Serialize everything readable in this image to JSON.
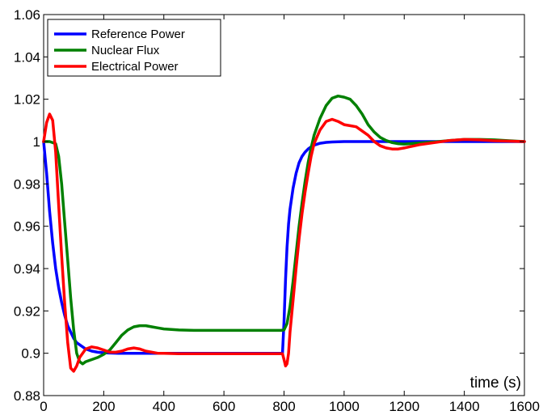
{
  "chart_data": {
    "type": "line",
    "title": "",
    "xlabel": "time (s)",
    "ylabel": "",
    "xlim": [
      0,
      1600
    ],
    "ylim": [
      0.88,
      1.06
    ],
    "xticks": [
      0,
      200,
      400,
      600,
      800,
      1000,
      1200,
      1400,
      1600
    ],
    "yticks": [
      0.88,
      0.9,
      0.92,
      0.94,
      0.96,
      0.98,
      1,
      1.02,
      1.04,
      1.06
    ],
    "xtick_labels": [
      "0",
      "200",
      "400",
      "600",
      "800",
      "1000",
      "1200",
      "1400",
      "1600"
    ],
    "ytick_labels": [
      "0.88",
      "0.9",
      "0.92",
      "0.94",
      "0.96",
      "0.98",
      "1",
      "1.02",
      "1.04",
      "1.06"
    ],
    "grid": false,
    "legend_position": "top-left",
    "series": [
      {
        "name": "Reference Power",
        "color": "#0000ff",
        "x": [
          0,
          10,
          20,
          30,
          40,
          50,
          60,
          70,
          80,
          90,
          100,
          110,
          120,
          140,
          160,
          180,
          200,
          250,
          300,
          400,
          500,
          600,
          700,
          795,
          800,
          805,
          810,
          815,
          820,
          830,
          840,
          850,
          860,
          870,
          880,
          890,
          900,
          920,
          940,
          960,
          980,
          1000,
          1100,
          1200,
          1400,
          1600
        ],
        "y": [
          1.0,
          0.985,
          0.967,
          0.952,
          0.94,
          0.931,
          0.924,
          0.918,
          0.913,
          0.91,
          0.907,
          0.905,
          0.904,
          0.902,
          0.901,
          0.9005,
          0.9002,
          0.9,
          0.9,
          0.9,
          0.9,
          0.9,
          0.9,
          0.9,
          0.915,
          0.935,
          0.95,
          0.961,
          0.968,
          0.978,
          0.985,
          0.99,
          0.993,
          0.995,
          0.9965,
          0.9975,
          0.9983,
          0.9992,
          0.9996,
          0.9998,
          0.9999,
          1.0,
          1.0,
          1.0,
          1.0,
          1.0
        ]
      },
      {
        "name": "Nuclear Flux",
        "color": "#008000",
        "x": [
          0,
          20,
          40,
          50,
          60,
          70,
          80,
          90,
          100,
          110,
          120,
          130,
          140,
          160,
          180,
          200,
          220,
          240,
          260,
          280,
          300,
          320,
          340,
          360,
          380,
          400,
          450,
          500,
          600,
          700,
          790,
          800,
          810,
          820,
          830,
          840,
          850,
          860,
          870,
          880,
          890,
          900,
          920,
          940,
          960,
          980,
          1000,
          1020,
          1040,
          1060,
          1080,
          1100,
          1120,
          1140,
          1160,
          1180,
          1200,
          1250,
          1300,
          1350,
          1400,
          1450,
          1500,
          1550,
          1600
        ],
        "y": [
          1.0,
          1.0,
          0.999,
          0.993,
          0.98,
          0.962,
          0.944,
          0.926,
          0.911,
          0.9,
          0.896,
          0.895,
          0.896,
          0.897,
          0.898,
          0.8995,
          0.9015,
          0.905,
          0.9085,
          0.911,
          0.9125,
          0.913,
          0.913,
          0.9125,
          0.912,
          0.9115,
          0.911,
          0.9108,
          0.9108,
          0.9108,
          0.9108,
          0.911,
          0.914,
          0.922,
          0.934,
          0.947,
          0.96,
          0.971,
          0.981,
          0.99,
          0.997,
          1.003,
          1.011,
          1.017,
          1.0205,
          1.0215,
          1.021,
          1.02,
          1.017,
          1.013,
          1.008,
          1.0045,
          1.002,
          1.0005,
          0.9995,
          0.999,
          0.9988,
          0.9993,
          0.9998,
          1.0005,
          1.001,
          1.001,
          1.0008,
          1.0004,
          1.0
        ]
      },
      {
        "name": "Electrical Power",
        "color": "#ff0000",
        "x": [
          0,
          10,
          20,
          30,
          40,
          50,
          60,
          70,
          80,
          90,
          100,
          110,
          120,
          140,
          160,
          180,
          200,
          220,
          240,
          260,
          280,
          300,
          320,
          340,
          360,
          380,
          400,
          450,
          500,
          600,
          700,
          795,
          800,
          805,
          810,
          815,
          820,
          830,
          840,
          850,
          860,
          870,
          880,
          890,
          900,
          920,
          940,
          960,
          980,
          1000,
          1020,
          1040,
          1060,
          1080,
          1100,
          1120,
          1140,
          1160,
          1180,
          1200,
          1250,
          1300,
          1350,
          1400,
          1450,
          1500,
          1550,
          1600
        ],
        "y": [
          1.0,
          1.009,
          1.013,
          1.01,
          0.995,
          0.97,
          0.946,
          0.924,
          0.905,
          0.893,
          0.8915,
          0.894,
          0.898,
          0.902,
          0.903,
          0.9025,
          0.9015,
          0.9005,
          0.9005,
          0.901,
          0.902,
          0.9025,
          0.902,
          0.901,
          0.9005,
          0.9,
          0.9,
          0.8998,
          0.8998,
          0.8998,
          0.8998,
          0.8998,
          0.897,
          0.894,
          0.895,
          0.9,
          0.91,
          0.925,
          0.94,
          0.954,
          0.966,
          0.976,
          0.985,
          0.993,
          0.999,
          1.0055,
          1.0095,
          1.0105,
          1.0095,
          1.008,
          1.0075,
          1.007,
          1.005,
          1.003,
          1.0,
          0.998,
          0.997,
          0.9965,
          0.9965,
          0.997,
          0.9985,
          0.9995,
          1.0005,
          1.001,
          1.0008,
          1.0004,
          1.0002,
          1.0
        ]
      }
    ]
  }
}
